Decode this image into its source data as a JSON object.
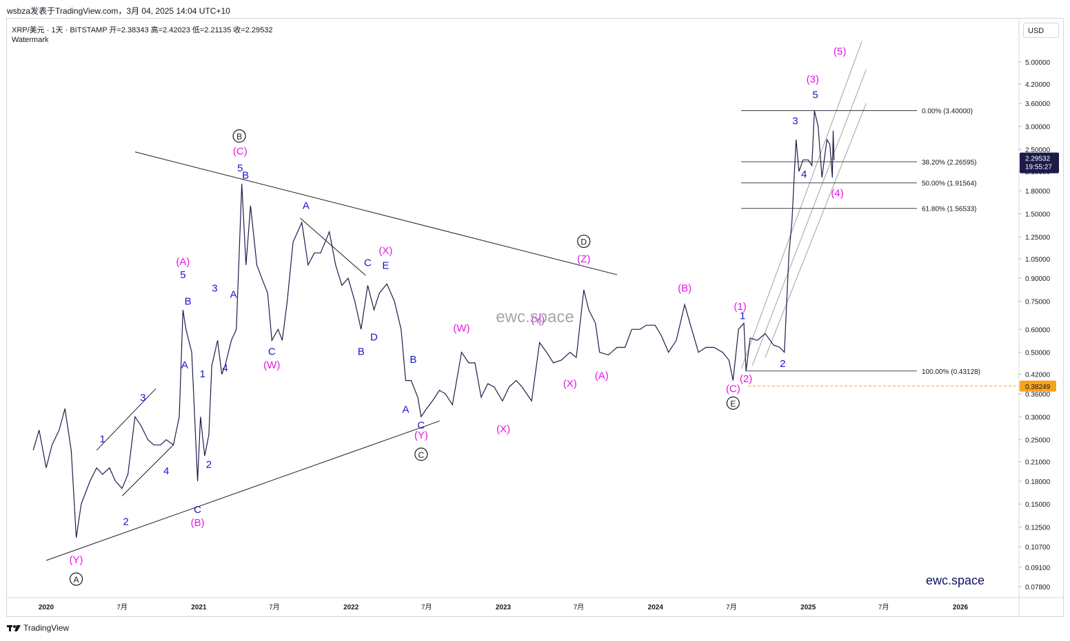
{
  "header": {
    "publish_line": "wsbza发表于TradingView.com，3月 04, 2025 14:04 UTC+10",
    "symbol_line": "XRP/美元 · 1天 · BITSTAMP  开=2.38343  高=2.42023  低=2.21135  收=2.29532",
    "watermark_label": "Watermark"
  },
  "currency_button": "USD",
  "footer_logo": "TradingView",
  "brand": {
    "center_watermark": "ewc.space",
    "corner_text": "ewc.space"
  },
  "colors": {
    "candles": "#1c1b4a",
    "magenta": "#e812e8",
    "blue": "#1616c8",
    "orange": "#f7a21b",
    "price_tag": "#1c1b4a"
  },
  "chart_data": {
    "type": "line",
    "title": "XRP/美元 · 1天 · BITSTAMP",
    "scale": "log",
    "y_ticks": [
      "5.00000",
      "4.20000",
      "3.60000",
      "3.00000",
      "2.50000",
      "2.10000",
      "1.80000",
      "1.50000",
      "1.25000",
      "1.05000",
      "0.90000",
      "0.75000",
      "0.60000",
      "0.50000",
      "0.42000",
      "0.36000",
      "0.30000",
      "0.25000",
      "0.21000",
      "0.18000",
      "0.15000",
      "0.12500",
      "0.10700",
      "0.09100",
      "0.07800"
    ],
    "x_ticks": [
      "2020",
      "7月",
      "2021",
      "7月",
      "2022",
      "7月",
      "2023",
      "7月",
      "2024",
      "7月",
      "2025",
      "7月",
      "2026"
    ],
    "x_tick_dates": [
      "2020-01-01",
      "2020-07-01",
      "2021-01-01",
      "2021-07-01",
      "2022-01-01",
      "2022-07-01",
      "2023-01-01",
      "2023-07-01",
      "2024-01-01",
      "2024-07-01",
      "2025-01-01",
      "2025-07-01",
      "2026-01-01"
    ],
    "price_series": {
      "name": "XRP/USD",
      "points": [
        [
          "2019-12-01",
          0.23
        ],
        [
          "2019-12-15",
          0.27
        ],
        [
          "2020-01-01",
          0.2
        ],
        [
          "2020-01-15",
          0.24
        ],
        [
          "2020-02-01",
          0.27
        ],
        [
          "2020-02-15",
          0.32
        ],
        [
          "2020-03-01",
          0.23
        ],
        [
          "2020-03-13",
          0.115
        ],
        [
          "2020-03-25",
          0.15
        ],
        [
          "2020-04-15",
          0.18
        ],
        [
          "2020-05-01",
          0.2
        ],
        [
          "2020-05-15",
          0.19
        ],
        [
          "2020-06-01",
          0.2
        ],
        [
          "2020-06-15",
          0.18
        ],
        [
          "2020-07-01",
          0.17
        ],
        [
          "2020-07-15",
          0.19
        ],
        [
          "2020-08-01",
          0.3
        ],
        [
          "2020-08-15",
          0.28
        ],
        [
          "2020-09-01",
          0.25
        ],
        [
          "2020-09-15",
          0.24
        ],
        [
          "2020-10-01",
          0.24
        ],
        [
          "2020-10-15",
          0.25
        ],
        [
          "2020-11-01",
          0.24
        ],
        [
          "2020-11-15",
          0.3
        ],
        [
          "2020-11-24",
          0.7
        ],
        [
          "2020-12-01",
          0.6
        ],
        [
          "2020-12-15",
          0.5
        ],
        [
          "2020-12-29",
          0.18
        ],
        [
          "2021-01-05",
          0.3
        ],
        [
          "2021-01-15",
          0.22
        ],
        [
          "2021-01-25",
          0.26
        ],
        [
          "2021-02-01",
          0.45
        ],
        [
          "2021-02-15",
          0.55
        ],
        [
          "2021-02-25",
          0.42
        ],
        [
          "2021-03-05",
          0.45
        ],
        [
          "2021-03-20",
          0.55
        ],
        [
          "2021-04-01",
          0.6
        ],
        [
          "2021-04-14",
          1.9
        ],
        [
          "2021-04-24",
          1.0
        ],
        [
          "2021-05-05",
          1.6
        ],
        [
          "2021-05-20",
          1.0
        ],
        [
          "2021-06-01",
          0.9
        ],
        [
          "2021-06-15",
          0.8
        ],
        [
          "2021-06-25",
          0.55
        ],
        [
          "2021-07-10",
          0.6
        ],
        [
          "2021-07-20",
          0.55
        ],
        [
          "2021-08-01",
          0.75
        ],
        [
          "2021-08-15",
          1.2
        ],
        [
          "2021-09-05",
          1.4
        ],
        [
          "2021-09-20",
          1.0
        ],
        [
          "2021-10-05",
          1.1
        ],
        [
          "2021-10-20",
          1.1
        ],
        [
          "2021-11-10",
          1.3
        ],
        [
          "2021-11-25",
          1.0
        ],
        [
          "2021-12-10",
          0.85
        ],
        [
          "2021-12-25",
          0.9
        ],
        [
          "2022-01-10",
          0.75
        ],
        [
          "2022-01-25",
          0.6
        ],
        [
          "2022-02-10",
          0.85
        ],
        [
          "2022-02-25",
          0.7
        ],
        [
          "2022-03-10",
          0.8
        ],
        [
          "2022-03-28",
          0.86
        ],
        [
          "2022-04-15",
          0.75
        ],
        [
          "2022-05-01",
          0.6
        ],
        [
          "2022-05-12",
          0.4
        ],
        [
          "2022-05-25",
          0.4
        ],
        [
          "2022-06-10",
          0.35
        ],
        [
          "2022-06-18",
          0.3
        ],
        [
          "2022-07-01",
          0.32
        ],
        [
          "2022-07-15",
          0.34
        ],
        [
          "2022-08-01",
          0.37
        ],
        [
          "2022-08-15",
          0.36
        ],
        [
          "2022-09-01",
          0.33
        ],
        [
          "2022-09-23",
          0.5
        ],
        [
          "2022-10-10",
          0.46
        ],
        [
          "2022-10-25",
          0.46
        ],
        [
          "2022-11-09",
          0.35
        ],
        [
          "2022-11-25",
          0.39
        ],
        [
          "2022-12-10",
          0.38
        ],
        [
          "2022-12-30",
          0.34
        ],
        [
          "2023-01-15",
          0.38
        ],
        [
          "2023-02-01",
          0.4
        ],
        [
          "2023-02-15",
          0.38
        ],
        [
          "2023-03-10",
          0.34
        ],
        [
          "2023-03-29",
          0.54
        ],
        [
          "2023-04-15",
          0.5
        ],
        [
          "2023-05-01",
          0.46
        ],
        [
          "2023-05-20",
          0.47
        ],
        [
          "2023-06-10",
          0.5
        ],
        [
          "2023-06-25",
          0.48
        ],
        [
          "2023-07-13",
          0.82
        ],
        [
          "2023-07-25",
          0.7
        ],
        [
          "2023-08-10",
          0.63
        ],
        [
          "2023-08-20",
          0.5
        ],
        [
          "2023-09-10",
          0.49
        ],
        [
          "2023-10-01",
          0.52
        ],
        [
          "2023-10-20",
          0.52
        ],
        [
          "2023-11-05",
          0.6
        ],
        [
          "2023-11-25",
          0.6
        ],
        [
          "2023-12-10",
          0.62
        ],
        [
          "2023-12-31",
          0.62
        ],
        [
          "2024-01-15",
          0.57
        ],
        [
          "2024-02-01",
          0.5
        ],
        [
          "2024-02-20",
          0.55
        ],
        [
          "2024-03-11",
          0.73
        ],
        [
          "2024-03-25",
          0.62
        ],
        [
          "2024-04-13",
          0.5
        ],
        [
          "2024-05-01",
          0.52
        ],
        [
          "2024-05-20",
          0.52
        ],
        [
          "2024-06-10",
          0.5
        ],
        [
          "2024-06-25",
          0.47
        ],
        [
          "2024-07-05",
          0.4
        ],
        [
          "2024-07-18",
          0.6
        ],
        [
          "2024-07-31",
          0.63
        ],
        [
          "2024-08-05",
          0.43
        ],
        [
          "2024-08-15",
          0.56
        ],
        [
          "2024-09-01",
          0.55
        ],
        [
          "2024-09-20",
          0.58
        ],
        [
          "2024-10-10",
          0.53
        ],
        [
          "2024-10-25",
          0.52
        ],
        [
          "2024-11-05",
          0.5
        ],
        [
          "2024-11-16",
          1.1
        ],
        [
          "2024-11-23",
          1.4
        ],
        [
          "2024-12-03",
          2.7
        ],
        [
          "2024-12-10",
          2.1
        ],
        [
          "2024-12-20",
          2.3
        ],
        [
          "2025-01-01",
          2.3
        ],
        [
          "2025-01-10",
          2.2
        ],
        [
          "2025-01-16",
          3.4
        ],
        [
          "2025-01-25",
          3.0
        ],
        [
          "2025-02-03",
          2.0
        ],
        [
          "2025-02-15",
          2.7
        ],
        [
          "2025-02-22",
          2.6
        ],
        [
          "2025-02-28",
          2.0
        ],
        [
          "2025-03-02",
          2.9
        ],
        [
          "2025-03-04",
          2.29532
        ]
      ]
    },
    "ohlc_last": {
      "open": 2.38343,
      "high": 2.42023,
      "low": 2.21135,
      "close": 2.29532
    },
    "price_labels": [
      {
        "text": "2.29532",
        "value": 2.29532,
        "extra": "19:55:27",
        "color": "#1c1b4a"
      },
      {
        "text": "0.38249",
        "value": 0.38249,
        "color": "#f7a21b"
      }
    ],
    "fib_levels": [
      {
        "label": "0.00% (3.40000)",
        "value": 3.4
      },
      {
        "label": "38.20% (2.26595)",
        "value": 2.26595
      },
      {
        "label": "50.00% (1.91564)",
        "value": 1.91564
      },
      {
        "label": "61.80% (1.56533)",
        "value": 1.56533
      },
      {
        "label": "100.00% (0.43128)",
        "value": 0.43128
      }
    ],
    "wave_labels": [
      {
        "t": "A",
        "d": "2020-03-13",
        "v": 0.081,
        "style": "circle"
      },
      {
        "t": "(Y)",
        "d": "2020-03-13",
        "v": 0.094,
        "style": "magenta"
      },
      {
        "t": "1",
        "d": "2020-05-15",
        "v": 0.245,
        "style": "blue"
      },
      {
        "t": "2",
        "d": "2020-07-10",
        "v": 0.127,
        "style": "blue"
      },
      {
        "t": "3",
        "d": "2020-08-20",
        "v": 0.34,
        "style": "blue"
      },
      {
        "t": "4",
        "d": "2020-10-15",
        "v": 0.19,
        "style": "blue"
      },
      {
        "t": "5",
        "d": "2020-11-24",
        "v": 0.9,
        "style": "blue"
      },
      {
        "t": "(A)",
        "d": "2020-11-24",
        "v": 1.0,
        "style": "magenta"
      },
      {
        "t": "B",
        "d": "2020-12-06",
        "v": 0.73,
        "style": "blue"
      },
      {
        "t": "A",
        "d": "2020-11-28",
        "v": 0.44,
        "style": "blue"
      },
      {
        "t": "C",
        "d": "2020-12-29",
        "v": 0.14,
        "style": "blue"
      },
      {
        "t": "(B)",
        "d": "2020-12-29",
        "v": 0.126,
        "style": "magenta"
      },
      {
        "t": "1",
        "d": "2021-01-10",
        "v": 0.41,
        "style": "blue"
      },
      {
        "t": "2",
        "d": "2021-01-25",
        "v": 0.2,
        "style": "blue"
      },
      {
        "t": "3",
        "d": "2021-02-08",
        "v": 0.81,
        "style": "blue"
      },
      {
        "t": "4",
        "d": "2021-03-05",
        "v": 0.43,
        "style": "blue"
      },
      {
        "t": "A",
        "d": "2021-03-25",
        "v": 0.77,
        "style": "blue"
      },
      {
        "t": "5",
        "d": "2021-04-10",
        "v": 2.1,
        "style": "blue"
      },
      {
        "t": "B",
        "d": "2021-04-23",
        "v": 1.98,
        "style": "blue"
      },
      {
        "t": "(C)",
        "d": "2021-04-10",
        "v": 2.4,
        "style": "magenta"
      },
      {
        "t": "B",
        "d": "2021-04-08",
        "v": 2.72,
        "style": "circle"
      },
      {
        "t": "C",
        "d": "2021-06-25",
        "v": 0.49,
        "style": "blue"
      },
      {
        "t": "(W)",
        "d": "2021-06-25",
        "v": 0.44,
        "style": "magenta"
      },
      {
        "t": "A",
        "d": "2021-09-15",
        "v": 1.56,
        "style": "blue"
      },
      {
        "t": "C",
        "d": "2022-02-10",
        "v": 0.99,
        "style": "blue"
      },
      {
        "t": "B",
        "d": "2022-01-25",
        "v": 0.49,
        "style": "blue"
      },
      {
        "t": "D",
        "d": "2022-02-25",
        "v": 0.55,
        "style": "blue"
      },
      {
        "t": "E",
        "d": "2022-03-25",
        "v": 0.97,
        "style": "blue"
      },
      {
        "t": "(X)",
        "d": "2022-03-25",
        "v": 1.09,
        "style": "magenta"
      },
      {
        "t": "A",
        "d": "2022-05-12",
        "v": 0.31,
        "style": "blue"
      },
      {
        "t": "B",
        "d": "2022-05-30",
        "v": 0.46,
        "style": "blue"
      },
      {
        "t": "C",
        "d": "2022-06-18",
        "v": 0.273,
        "style": "blue"
      },
      {
        "t": "(Y)",
        "d": "2022-06-18",
        "v": 0.252,
        "style": "magenta"
      },
      {
        "t": "C",
        "d": "2022-06-18",
        "v": 0.218,
        "style": "circle"
      },
      {
        "t": "(W)",
        "d": "2022-09-23",
        "v": 0.59,
        "style": "magenta"
      },
      {
        "t": "(X)",
        "d": "2023-01-01",
        "v": 0.265,
        "style": "magenta"
      },
      {
        "t": "(Y)",
        "d": "2023-03-25",
        "v": 0.63,
        "style": "magenta"
      },
      {
        "t": "(X)",
        "d": "2023-06-10",
        "v": 0.38,
        "style": "magenta"
      },
      {
        "t": "(Z)",
        "d": "2023-07-13",
        "v": 1.02,
        "style": "magenta"
      },
      {
        "t": "D",
        "d": "2023-07-13",
        "v": 1.18,
        "style": "circle"
      },
      {
        "t": "(A)",
        "d": "2023-08-25",
        "v": 0.405,
        "style": "magenta"
      },
      {
        "t": "(B)",
        "d": "2024-03-11",
        "v": 0.81,
        "style": "magenta"
      },
      {
        "t": "(1)",
        "d": "2024-07-22",
        "v": 0.7,
        "style": "magenta"
      },
      {
        "t": "1",
        "d": "2024-07-28",
        "v": 0.65,
        "style": "blue"
      },
      {
        "t": "(2)",
        "d": "2024-08-05",
        "v": 0.395,
        "style": "magenta"
      },
      {
        "t": "(C)",
        "d": "2024-07-05",
        "v": 0.365,
        "style": "magenta"
      },
      {
        "t": "E",
        "d": "2024-07-05",
        "v": 0.327,
        "style": "circle"
      },
      {
        "t": "2",
        "d": "2024-11-01",
        "v": 0.445,
        "style": "blue"
      },
      {
        "t": "3",
        "d": "2024-12-01",
        "v": 3.05,
        "style": "blue"
      },
      {
        "t": "4",
        "d": "2024-12-22",
        "v": 2.0,
        "style": "blue"
      },
      {
        "t": "5",
        "d": "2025-01-18",
        "v": 3.75,
        "style": "blue"
      },
      {
        "t": "(3)",
        "d": "2025-01-12",
        "v": 4.25,
        "style": "magenta"
      },
      {
        "t": "(4)",
        "d": "2025-03-12",
        "v": 1.72,
        "style": "magenta"
      },
      {
        "t": "(5)",
        "d": "2025-03-18",
        "v": 5.3,
        "style": "magenta"
      }
    ],
    "trendlines": [
      {
        "from": [
          "2020-01-01",
          0.096
        ],
        "to": [
          "2022-08-01",
          0.29
        ]
      },
      {
        "from": [
          "2020-08-01",
          2.45
        ],
        "to": [
          "2023-10-01",
          0.925
        ]
      },
      {
        "from": [
          "2021-09-01",
          1.45
        ],
        "to": [
          "2022-02-05",
          0.92
        ]
      },
      {
        "from": [
          "2020-07-01",
          0.16
        ],
        "to": [
          "2020-11-01",
          0.24
        ]
      },
      {
        "from": [
          "2020-05-01",
          0.23
        ],
        "to": [
          "2020-09-20",
          0.375
        ]
      },
      {
        "from": [
          "2024-07-25",
          0.44
        ],
        "to": [
          "2025-05-10",
          5.9
        ]
      },
      {
        "from": [
          "2024-08-20",
          0.45
        ],
        "to": [
          "2025-05-20",
          4.7
        ]
      },
      {
        "from": [
          "2024-09-20",
          0.48
        ],
        "to": [
          "2025-05-20",
          3.6
        ]
      }
    ]
  }
}
